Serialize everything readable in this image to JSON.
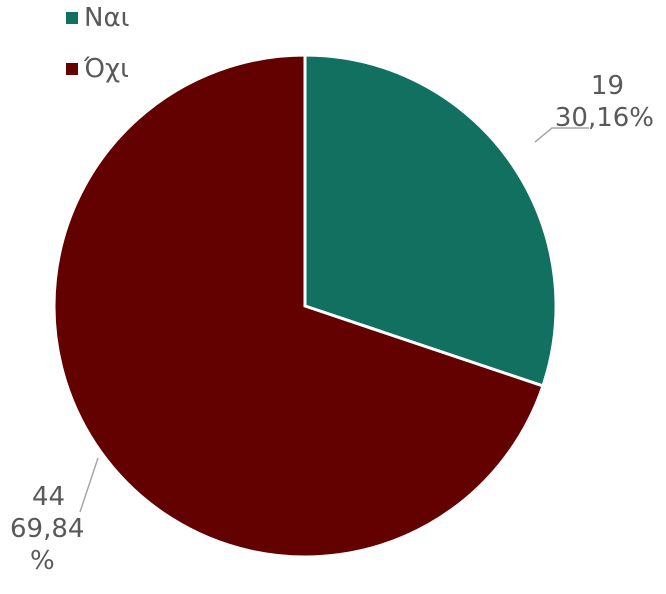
{
  "chart_data": {
    "type": "pie",
    "categories": [
      "Ναι",
      "Όχι"
    ],
    "values": [
      19,
      44
    ],
    "percent_labels": [
      "30,16%",
      "69,84 %"
    ],
    "colors": [
      "#11705f",
      "#630000"
    ],
    "title": "",
    "legend_position": "top-left"
  },
  "legend": {
    "items": [
      {
        "label": "Ναι",
        "color": "#11705f"
      },
      {
        "label": "Όχι",
        "color": "#630000"
      }
    ]
  },
  "labels": {
    "yes": {
      "value": "19",
      "percent": "30,16%"
    },
    "no": {
      "value": "44",
      "percent_line1": "69,84",
      "percent_line2": "%"
    }
  }
}
